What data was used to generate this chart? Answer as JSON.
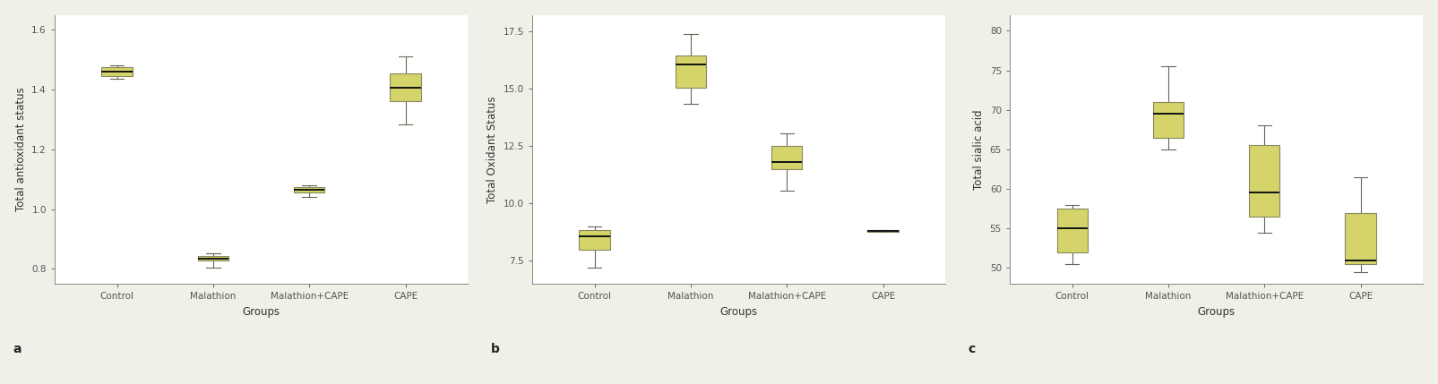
{
  "box_facecolor": "#d4d46b",
  "box_edgecolor": "#888860",
  "median_color": "#111111",
  "whisker_color": "#666655",
  "background_color": "#ffffff",
  "fig_facecolor": "#f0f0e8",
  "subplot_a": {
    "ylabel": "Total antioxidant status",
    "xlabel": "Groups",
    "label": "a",
    "ylim": [
      0.75,
      1.65
    ],
    "yticks": [
      0.8,
      1.0,
      1.2,
      1.4,
      1.6
    ],
    "ytick_labels": [
      "0.8",
      "1.0",
      "1.2",
      "1.4",
      "1.6"
    ],
    "categories": [
      "Control",
      "Malathion",
      "Malathion+CAPE",
      "CAPE"
    ],
    "boxes": [
      {
        "q1": 1.445,
        "median": 1.46,
        "q3": 1.475,
        "whislo": 1.437,
        "whishi": 1.48
      },
      {
        "q1": 0.827,
        "median": 0.835,
        "q3": 0.843,
        "whislo": 0.803,
        "whishi": 0.852
      },
      {
        "q1": 1.057,
        "median": 1.065,
        "q3": 1.073,
        "whislo": 1.042,
        "whishi": 1.08
      },
      {
        "q1": 1.36,
        "median": 1.405,
        "q3": 1.455,
        "whislo": 1.285,
        "whishi": 1.51
      }
    ]
  },
  "subplot_b": {
    "ylabel": "Total Oxidant Status",
    "xlabel": "Groups",
    "label": "b",
    "ylim": [
      6.5,
      18.2
    ],
    "yticks": [
      7.5,
      10.0,
      12.5,
      15.0,
      17.5
    ],
    "ytick_labels": [
      "7.5",
      "10.0",
      "12.5",
      "15.0",
      "17.5"
    ],
    "categories": [
      "Control",
      "Malathion",
      "Malathion+CAPE",
      "CAPE"
    ],
    "boxes": [
      {
        "q1": 8.0,
        "median": 8.55,
        "q3": 8.85,
        "whislo": 7.2,
        "whishi": 9.0
      },
      {
        "q1": 15.05,
        "median": 16.05,
        "q3": 16.45,
        "whislo": 14.35,
        "whishi": 17.35
      },
      {
        "q1": 11.5,
        "median": 11.8,
        "q3": 12.5,
        "whislo": 10.55,
        "whishi": 13.05
      },
      {
        "q1": 8.76,
        "median": 8.8,
        "q3": 8.84,
        "whislo": 8.76,
        "whishi": 8.84
      }
    ]
  },
  "subplot_c": {
    "ylabel": "Total sialic acid",
    "xlabel": "Groups",
    "label": "c",
    "ylim": [
      48,
      82
    ],
    "yticks": [
      50,
      55,
      60,
      65,
      70,
      75,
      80
    ],
    "ytick_labels": [
      "50",
      "55",
      "60",
      "65",
      "70",
      "75",
      "80"
    ],
    "categories": [
      "Control",
      "Malathion",
      "Malathion+CAPE",
      "CAPE"
    ],
    "boxes": [
      {
        "q1": 52.0,
        "median": 55.0,
        "q3": 57.5,
        "whislo": 50.5,
        "whishi": 58.0
      },
      {
        "q1": 66.5,
        "median": 69.5,
        "q3": 71.0,
        "whislo": 65.0,
        "whishi": 75.5
      },
      {
        "q1": 56.5,
        "median": 59.5,
        "q3": 65.5,
        "whislo": 54.5,
        "whishi": 68.0
      },
      {
        "q1": 50.5,
        "median": 51.0,
        "q3": 57.0,
        "whislo": 49.5,
        "whishi": 61.5
      }
    ]
  }
}
